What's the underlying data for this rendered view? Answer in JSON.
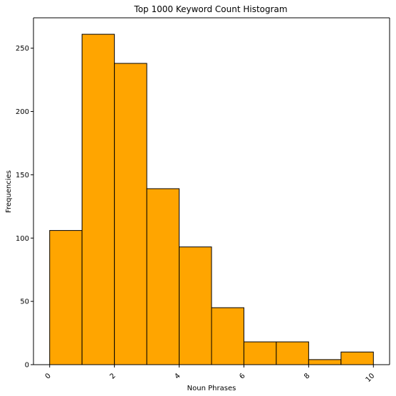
{
  "chart_data": {
    "type": "bar",
    "title": "Top 1000 Keyword Count Histogram",
    "xlabel": "Noun Phrases",
    "ylabel": "Frequencies",
    "bins": [
      {
        "x0": 0,
        "x1": 1,
        "value": 106
      },
      {
        "x0": 1,
        "x1": 2,
        "value": 261
      },
      {
        "x0": 2,
        "x1": 3,
        "value": 238
      },
      {
        "x0": 3,
        "x1": 4,
        "value": 139
      },
      {
        "x0": 4,
        "x1": 5,
        "value": 93
      },
      {
        "x0": 5,
        "x1": 6,
        "value": 45
      },
      {
        "x0": 6,
        "x1": 7,
        "value": 18
      },
      {
        "x0": 7,
        "x1": 8,
        "value": 18
      },
      {
        "x0": 8,
        "x1": 9,
        "value": 4
      },
      {
        "x0": 9,
        "x1": 10,
        "value": 10
      }
    ],
    "xlim": [
      -0.5,
      10.5
    ],
    "ylim": [
      0,
      274
    ],
    "xticks": [
      0,
      2,
      4,
      6,
      8,
      10
    ],
    "xtick_labels": [
      "0",
      "2",
      "4",
      "6",
      "8",
      "10"
    ],
    "xtick_rotation": 45,
    "yticks": [
      0,
      50,
      100,
      150,
      200,
      250
    ],
    "ytick_labels": [
      "0",
      "50",
      "100",
      "150",
      "200",
      "250"
    ],
    "grid": false,
    "colors": {
      "bar_fill": "#FFA500",
      "bar_edge": "#000000"
    }
  }
}
